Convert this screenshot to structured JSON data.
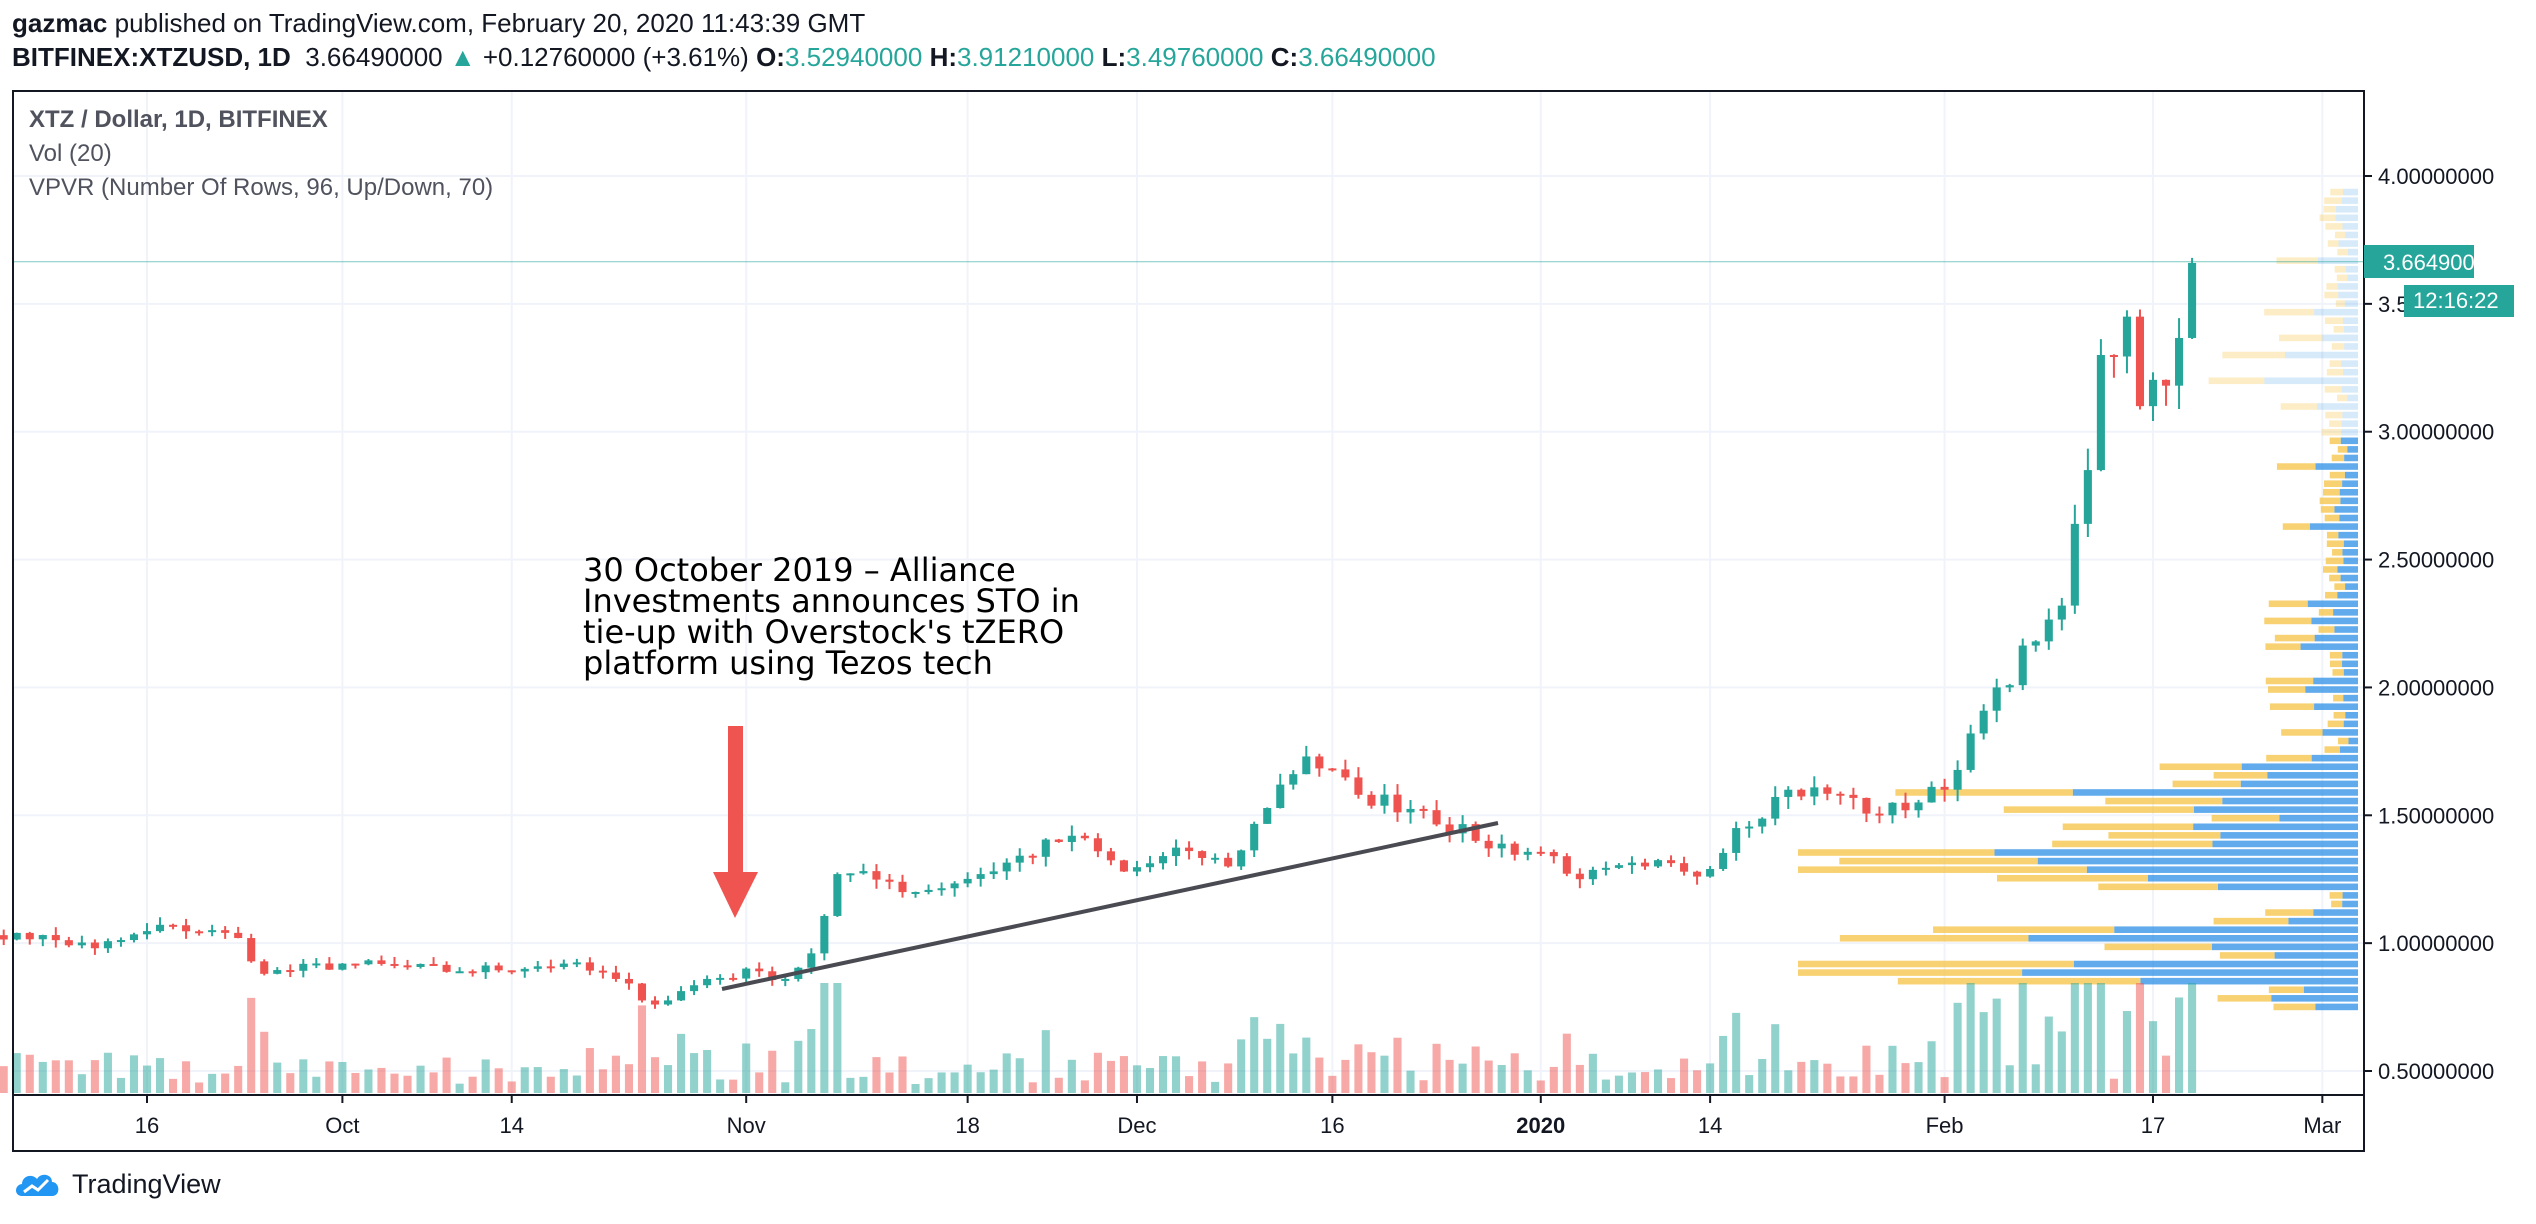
{
  "header": {
    "author": "gazmac",
    "published_text": "published on TradingView.com, February 20, 2020 11:43:39 GMT",
    "symbol": "BITFINEX:XTZUSD, 1D",
    "last": "3.66490000",
    "change": "+0.12760000 (+3.61%)",
    "o_label": "O:",
    "o": "3.52940000",
    "h_label": "H:",
    "h": "3.91210000",
    "l_label": "L:",
    "l": "3.49760000",
    "c_label": "C:",
    "c": "3.66490000"
  },
  "legend": {
    "line1": "XTZ / Dollar, 1D, BITFINEX",
    "line2": "Vol (20)",
    "line3": "VPVR (Number Of Rows, 96, Up/Down, 70)"
  },
  "annotation": {
    "lines": [
      "30 October 2019 – Alliance",
      "Investments announces STO in",
      "tie-up with Overstock's tZERO",
      "platform using Tezos tech"
    ]
  },
  "price_labels": {
    "last_price": "3.66490000",
    "countdown": "12:16:22"
  },
  "footer": {
    "brand": "TradingView"
  },
  "colors": {
    "up": "#26a69a",
    "down": "#ef5350",
    "vpvr_up": "#1e88e5",
    "vpvr_down": "#f6c343",
    "arrow": "#f05451",
    "trendline": "#4a4a52"
  },
  "chart_data": {
    "type": "candlestick",
    "title": "XTZ / Dollar, 1D, BITFINEX",
    "ylim": [
      0.4,
      4.15
    ],
    "y_ticks": [
      "4.00000000",
      "3.50000000",
      "3.00000000",
      "2.50000000",
      "2.00000000",
      "1.50000000",
      "1.00000000",
      "0.50000000"
    ],
    "y_tick_values": [
      4.0,
      3.5,
      3.0,
      2.5,
      2.0,
      1.5,
      1.0,
      0.5
    ],
    "x_ticks": [
      "16",
      "Oct",
      "14",
      "Nov",
      "18",
      "Dec",
      "16",
      "2020",
      "14",
      "Feb",
      "17",
      "Mar"
    ],
    "x_tick_dates": [
      "2019-09-16",
      "2019-10-01",
      "2019-10-14",
      "2019-11-01",
      "2019-11-18",
      "2019-12-01",
      "2019-12-16",
      "2020-01-01",
      "2020-01-14",
      "2020-02-01",
      "2020-02-17",
      "2020-03-01"
    ],
    "date_range": [
      "2019-09-02",
      "2020-03-02"
    ],
    "anchors": [
      {
        "date": "2019-09-02",
        "close": 0.98
      },
      {
        "date": "2019-09-06",
        "close": 1.04
      },
      {
        "date": "2019-09-12",
        "close": 0.98
      },
      {
        "date": "2019-09-18",
        "close": 1.07
      },
      {
        "date": "2019-09-23",
        "close": 1.02
      },
      {
        "date": "2019-09-25",
        "close": 0.88
      },
      {
        "date": "2019-10-01",
        "close": 0.92
      },
      {
        "date": "2019-10-10",
        "close": 0.89
      },
      {
        "date": "2019-10-18",
        "close": 0.92
      },
      {
        "date": "2019-10-22",
        "close": 0.86
      },
      {
        "date": "2019-10-25",
        "close": 0.76
      },
      {
        "date": "2019-10-29",
        "close": 0.86
      },
      {
        "date": "2019-11-02",
        "close": 0.89
      },
      {
        "date": "2019-11-04",
        "close": 0.86
      },
      {
        "date": "2019-11-06",
        "close": 0.96
      },
      {
        "date": "2019-11-08",
        "close": 1.27
      },
      {
        "date": "2019-11-12",
        "close": 1.24
      },
      {
        "date": "2019-11-14",
        "close": 1.2
      },
      {
        "date": "2019-11-19",
        "close": 1.27
      },
      {
        "date": "2019-11-26",
        "close": 1.42
      },
      {
        "date": "2019-11-30",
        "close": 1.28
      },
      {
        "date": "2019-12-05",
        "close": 1.36
      },
      {
        "date": "2019-12-08",
        "close": 1.3
      },
      {
        "date": "2019-12-12",
        "close": 1.62
      },
      {
        "date": "2019-12-14",
        "close": 1.73
      },
      {
        "date": "2019-12-18",
        "close": 1.58
      },
      {
        "date": "2019-12-23",
        "close": 1.52
      },
      {
        "date": "2019-12-27",
        "close": 1.4
      },
      {
        "date": "2020-01-02",
        "close": 1.34
      },
      {
        "date": "2020-01-04",
        "close": 1.25
      },
      {
        "date": "2020-01-09",
        "close": 1.3
      },
      {
        "date": "2020-01-14",
        "close": 1.29
      },
      {
        "date": "2020-01-16",
        "close": 1.45
      },
      {
        "date": "2020-01-20",
        "close": 1.6
      },
      {
        "date": "2020-01-24",
        "close": 1.58
      },
      {
        "date": "2020-01-27",
        "close": 1.5
      },
      {
        "date": "2020-02-01",
        "close": 1.6
      },
      {
        "date": "2020-02-03",
        "close": 1.82
      },
      {
        "date": "2020-02-05",
        "close": 2.0
      },
      {
        "date": "2020-02-08",
        "close": 2.18
      },
      {
        "date": "2020-02-10",
        "close": 2.32
      },
      {
        "date": "2020-02-12",
        "close": 2.85
      },
      {
        "date": "2020-02-13",
        "close": 3.3
      },
      {
        "date": "2020-02-15",
        "close": 3.45
      },
      {
        "date": "2020-02-16",
        "close": 3.1
      },
      {
        "date": "2020-02-18",
        "close": 3.18
      },
      {
        "date": "2020-02-20",
        "close": 3.66
      }
    ]
  }
}
